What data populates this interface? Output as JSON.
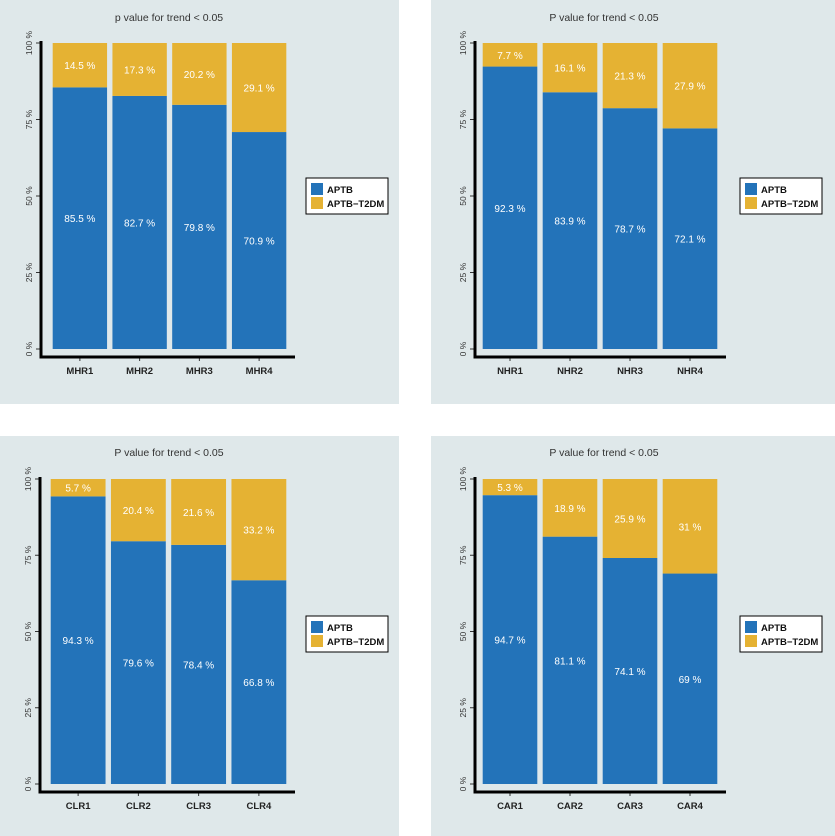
{
  "colors": {
    "apt_b": "#2373b9",
    "apt_b_t2dm": "#e5b233",
    "panel_bg": "#dfe8ea",
    "axis": "#000000"
  },
  "legend": [
    "APTB",
    "APTB−T2DM"
  ],
  "y_ticks": [
    "0 %",
    "25 %",
    "50 %",
    "75 %",
    "100 %"
  ],
  "chart_data": [
    {
      "type": "bar",
      "stacked": true,
      "title": "p value for trend < 0.05",
      "categories": [
        "MHR1",
        "MHR2",
        "MHR3",
        "MHR4"
      ],
      "ylim": [
        0,
        100
      ],
      "legend_position": "right",
      "series": [
        {
          "name": "APTB",
          "values": [
            85.5,
            82.7,
            79.8,
            70.9
          ],
          "labels": [
            "85.5 %",
            "82.7 %",
            "79.8 %",
            "70.9 %"
          ]
        },
        {
          "name": "APTB−T2DM",
          "values": [
            14.5,
            17.3,
            20.2,
            29.1
          ],
          "labels": [
            "14.5 %",
            "17.3 %",
            "20.2 %",
            "29.1 %"
          ]
        }
      ]
    },
    {
      "type": "bar",
      "stacked": true,
      "title": "P value for trend < 0.05",
      "categories": [
        "NHR1",
        "NHR2",
        "NHR3",
        "NHR4"
      ],
      "ylim": [
        0,
        100
      ],
      "legend_position": "right",
      "series": [
        {
          "name": "APTB",
          "values": [
            92.3,
            83.9,
            78.7,
            72.1
          ],
          "labels": [
            "92.3 %",
            "83.9 %",
            "78.7 %",
            "72.1 %"
          ]
        },
        {
          "name": "APTB−T2DM",
          "values": [
            7.7,
            16.1,
            21.3,
            27.9
          ],
          "labels": [
            "7.7 %",
            "16.1 %",
            "21.3 %",
            "27.9 %"
          ]
        }
      ]
    },
    {
      "type": "bar",
      "stacked": true,
      "title": "P value for trend < 0.05",
      "categories": [
        "CLR1",
        "CLR2",
        "CLR3",
        "CLR4"
      ],
      "ylim": [
        0,
        100
      ],
      "legend_position": "right",
      "series": [
        {
          "name": "APTB",
          "values": [
            94.3,
            79.6,
            78.4,
            66.8
          ],
          "labels": [
            "94.3 %",
            "79.6 %",
            "78.4 %",
            "66.8 %"
          ]
        },
        {
          "name": "APTB−T2DM",
          "values": [
            5.7,
            20.4,
            21.6,
            33.2
          ],
          "labels": [
            "5.7 %",
            "20.4 %",
            "21.6 %",
            "33.2 %"
          ]
        }
      ]
    },
    {
      "type": "bar",
      "stacked": true,
      "title": "P value for trend < 0.05",
      "categories": [
        "CAR1",
        "CAR2",
        "CAR3",
        "CAR4"
      ],
      "ylim": [
        0,
        100
      ],
      "legend_position": "right",
      "series": [
        {
          "name": "APTB",
          "values": [
            94.7,
            81.1,
            74.1,
            69
          ],
          "labels": [
            "94.7 %",
            "81.1 %",
            "74.1 %",
            "69 %"
          ]
        },
        {
          "name": "APTB−T2DM",
          "values": [
            5.3,
            18.9,
            25.9,
            31
          ],
          "labels": [
            "5.3 %",
            "18.9 %",
            "25.9 %",
            "31 %"
          ]
        }
      ]
    }
  ]
}
